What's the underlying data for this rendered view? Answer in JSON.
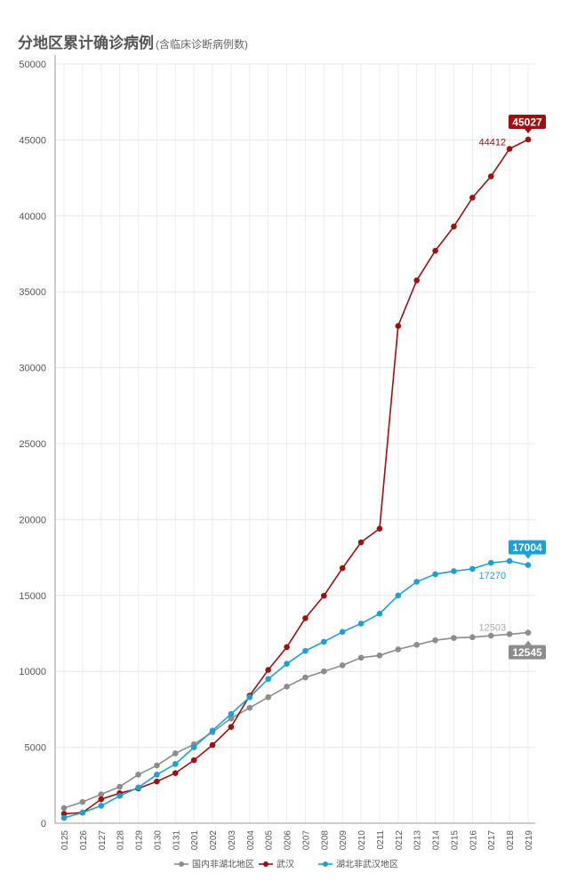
{
  "chart_data": {
    "type": "line",
    "title": "分地区累计确诊病例",
    "subtitle": "(含临床诊断病例数)",
    "ylim": [
      0,
      50000
    ],
    "yticks": [
      0,
      5000,
      10000,
      15000,
      20000,
      25000,
      30000,
      35000,
      40000,
      45000,
      50000
    ],
    "grid": true,
    "legend_position": "bottom-center",
    "categories": [
      "0125",
      "0126",
      "0127",
      "0128",
      "0129",
      "0130",
      "0131",
      "0201",
      "0202",
      "0203",
      "0204",
      "0205",
      "0206",
      "0207",
      "0208",
      "0209",
      "0210",
      "0211",
      "0212",
      "0213",
      "0214",
      "0215",
      "0216",
      "0217",
      "0218",
      "0219"
    ],
    "series": [
      {
        "name": "国内非湖北地区",
        "color": "#8c8c8c",
        "values": [
          1000,
          1400,
          1900,
          2400,
          3200,
          3800,
          4600,
          5200,
          6000,
          6900,
          7600,
          8300,
          9000,
          9600,
          10000,
          10400,
          10900,
          11050,
          11450,
          11750,
          12050,
          12200,
          12250,
          12350,
          12450,
          12550
        ]
      },
      {
        "name": "武汉",
        "color": "#a01010",
        "values": [
          620,
          700,
          1580,
          1980,
          2290,
          2750,
          3300,
          4150,
          5150,
          6340,
          8400,
          10100,
          11600,
          13500,
          14980,
          16800,
          18500,
          19400,
          32750,
          35750,
          37700,
          39300,
          41200,
          42600,
          44412,
          45027
        ]
      },
      {
        "name": "湖北非武汉地区",
        "color": "#1e9fd6",
        "values": [
          350,
          700,
          1150,
          1800,
          2350,
          3200,
          3900,
          5000,
          6100,
          7200,
          8300,
          9500,
          10500,
          11350,
          11950,
          12600,
          13150,
          13800,
          15000,
          15900,
          16400,
          16600,
          16750,
          17150,
          17270,
          17004
        ]
      }
    ],
    "annotations": [
      {
        "series": "武汉",
        "text": "44412",
        "category": "0218"
      },
      {
        "series": "武汉",
        "badge": "45027",
        "category": "0219"
      },
      {
        "series": "湖北非武汉地区",
        "text": "17270",
        "category": "0218"
      },
      {
        "series": "湖北非武汉地区",
        "badge": "17004",
        "category": "0219"
      },
      {
        "series": "国内非湖北地区",
        "text": "12503",
        "category": "0218"
      },
      {
        "series": "国内非湖北地区",
        "badge": "12545",
        "category": "0219"
      }
    ]
  }
}
